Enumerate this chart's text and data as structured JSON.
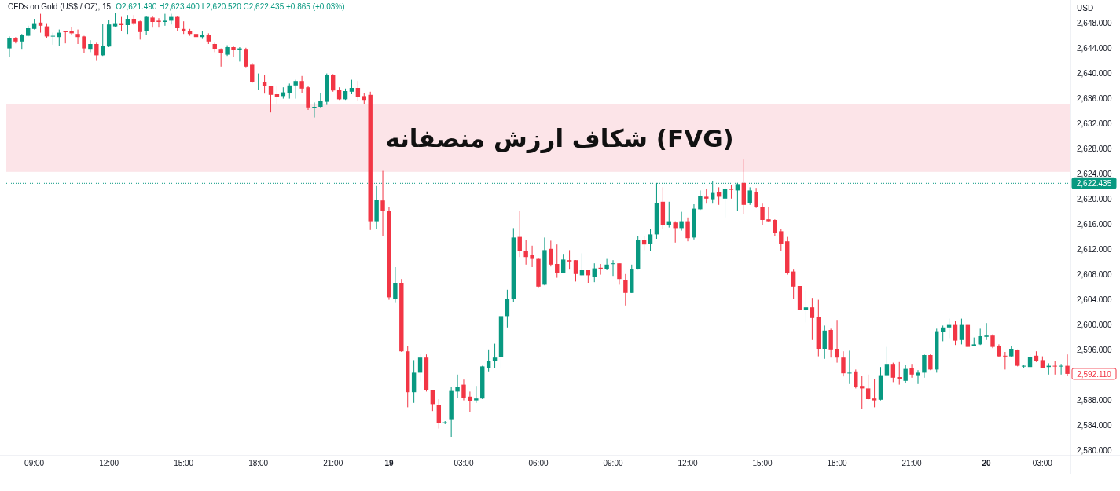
{
  "chart_data": {
    "type": "candlestick",
    "title": "CFDs on Gold (US$ / OZ), 15",
    "subtitle": "O2,621.490 H2,623.400 L2,620.520 C2,622.435 +0.865 (+0.03%)",
    "ylabel": "USD",
    "categories": [
      null,
      null,
      null,
      null,
      "09:00",
      null,
      null,
      null,
      null,
      null,
      null,
      null,
      null,
      null,
      null,
      null,
      "12:00",
      null,
      null,
      null,
      null,
      null,
      null,
      null,
      null,
      null,
      null,
      null,
      "15:00",
      null,
      null,
      null,
      null,
      null,
      null,
      null,
      null,
      null,
      null,
      null,
      "18:00",
      null,
      null,
      null,
      null,
      null,
      null,
      null,
      null,
      null,
      null,
      null,
      "21:00",
      null,
      null,
      null,
      null,
      null,
      null,
      null,
      null,
      "19",
      null,
      null,
      null,
      null,
      null,
      null,
      null,
      null,
      null,
      null,
      null,
      "03:00",
      null,
      null,
      null,
      null,
      null,
      null,
      null,
      null,
      null,
      null,
      null,
      "06:00",
      null,
      null,
      null,
      null,
      null,
      null,
      null,
      null,
      null,
      null,
      null,
      "09:00",
      null,
      null,
      null,
      null,
      null,
      null,
      null,
      null,
      null,
      null,
      null,
      "12:00",
      null,
      null,
      null,
      null,
      null,
      null,
      null,
      null,
      null,
      null,
      null,
      "15:00",
      null,
      null,
      null,
      null,
      null,
      null,
      null,
      null,
      null,
      null,
      null,
      "18:00",
      null,
      null,
      null,
      null,
      null,
      null,
      null,
      null,
      null,
      null,
      null,
      "21:00",
      null,
      null,
      null,
      null,
      null,
      null,
      null,
      null,
      null,
      null,
      null,
      "20",
      null,
      null,
      null,
      null,
      null,
      null,
      null,
      null,
      "03:00",
      null,
      null,
      null,
      null
    ],
    "ohlc": [
      [
        2643.9,
        2645.8,
        2642.6,
        2645.6
      ],
      [
        2645.6,
        2645.7,
        2644.7,
        2645.0
      ],
      [
        2645.0,
        2646.2,
        2643.7,
        2646.1
      ],
      [
        2645.9,
        2647.5,
        2645.8,
        2647.1
      ],
      [
        2647.0,
        2648.6,
        2646.9,
        2647.9
      ],
      [
        2648.0,
        2649.4,
        2646.4,
        2647.5
      ],
      [
        2647.4,
        2647.9,
        2645.5,
        2645.8
      ],
      [
        2645.8,
        2646.4,
        2644.5,
        2645.9
      ],
      [
        2645.7,
        2646.9,
        2644.3,
        2646.4
      ],
      [
        2646.6,
        2646.6,
        2644.7,
        2646.5
      ],
      [
        2646.6,
        2647.3,
        2646.0,
        2646.3
      ],
      [
        2646.2,
        2646.9,
        2644.6,
        2645.7
      ],
      [
        2645.8,
        2645.9,
        2643.2,
        2643.9
      ],
      [
        2643.7,
        2645.2,
        2643.3,
        2644.6
      ],
      [
        2644.6,
        2644.8,
        2641.9,
        2642.8
      ],
      [
        2642.8,
        2647.8,
        2642.7,
        2644.3
      ],
      [
        2644.2,
        2648.4,
        2644.1,
        2647.7
      ],
      [
        2647.4,
        2649.6,
        2647.3,
        2647.9
      ],
      [
        2647.9,
        2648.9,
        2646.6,
        2647.6
      ],
      [
        2647.6,
        2649.2,
        2646.2,
        2648.6
      ],
      [
        2648.6,
        2649.2,
        2647.6,
        2647.9
      ],
      [
        2648.2,
        2648.3,
        2645.3,
        2646.5
      ],
      [
        2646.7,
        2649.0,
        2646.1,
        2648.9
      ],
      [
        2648.8,
        2649.0,
        2647.2,
        2648.1
      ],
      [
        2648.3,
        2648.7,
        2647.2,
        2648.1
      ],
      [
        2648.1,
        2649.4,
        2647.5,
        2648.3
      ],
      [
        2648.3,
        2649.4,
        2647.7,
        2648.9
      ],
      [
        2648.9,
        2649.1,
        2646.6,
        2647.1
      ],
      [
        2647.0,
        2648.2,
        2646.2,
        2646.6
      ],
      [
        2646.6,
        2647.0,
        2645.9,
        2646.2
      ],
      [
        2646.2,
        2646.5,
        2645.3,
        2645.7
      ],
      [
        2645.7,
        2646.6,
        2645.4,
        2646.0
      ],
      [
        2646.0,
        2646.3,
        2644.6,
        2645.0
      ],
      [
        2644.6,
        2644.8,
        2643.3,
        2643.8
      ],
      [
        2643.7,
        2643.9,
        2641.0,
        2643.2
      ],
      [
        2642.9,
        2644.4,
        2642.7,
        2644.1
      ],
      [
        2644.1,
        2644.3,
        2642.5,
        2643.6
      ],
      [
        2643.6,
        2644.1,
        2641.8,
        2643.9
      ],
      [
        2643.7,
        2644.0,
        2640.9,
        2641.0
      ],
      [
        2641.3,
        2641.6,
        2638.4,
        2638.5
      ],
      [
        2638.5,
        2639.9,
        2637.3,
        2638.6
      ],
      [
        2638.6,
        2639.7,
        2636.7,
        2637.9
      ],
      [
        2637.9,
        2637.9,
        2633.7,
        2636.5
      ],
      [
        2636.6,
        2637.9,
        2635.1,
        2636.2
      ],
      [
        2636.3,
        2637.7,
        2635.9,
        2636.9
      ],
      [
        2636.8,
        2638.3,
        2635.9,
        2638.0
      ],
      [
        2638.0,
        2638.9,
        2635.9,
        2638.7
      ],
      [
        2638.7,
        2639.5,
        2636.8,
        2637.5
      ],
      [
        2637.7,
        2637.9,
        2634.1,
        2634.5
      ],
      [
        2634.5,
        2635.3,
        2632.9,
        2634.6
      ],
      [
        2634.6,
        2636.8,
        2634.5,
        2635.5
      ],
      [
        2635.4,
        2639.9,
        2634.9,
        2639.7
      ],
      [
        2639.7,
        2639.8,
        2637.0,
        2637.2
      ],
      [
        2637.3,
        2637.7,
        2635.7,
        2635.8
      ],
      [
        2635.8,
        2637.5,
        2635.7,
        2637.1
      ],
      [
        2637.0,
        2638.9,
        2636.6,
        2637.6
      ],
      [
        2637.6,
        2638.7,
        2635.6,
        2636.2
      ],
      [
        2636.3,
        2636.8,
        2635.0,
        2635.7
      ],
      [
        2636.5,
        2637.0,
        2615.0,
        2616.4
      ],
      [
        2616.4,
        2622.0,
        2615.2,
        2619.8
      ],
      [
        2619.7,
        2624.4,
        2614.1,
        2618.0
      ],
      [
        2618.0,
        2618.6,
        2603.9,
        2604.3
      ],
      [
        2604.1,
        2609.1,
        2603.4,
        2606.6
      ],
      [
        2606.6,
        2607.2,
        2595.6,
        2595.7
      ],
      [
        2595.7,
        2596.6,
        2586.8,
        2589.2
      ],
      [
        2589.2,
        2594.3,
        2587.5,
        2592.3
      ],
      [
        2592.3,
        2595.3,
        2590.9,
        2594.7
      ],
      [
        2594.7,
        2595.2,
        2589.3,
        2589.5
      ],
      [
        2589.6,
        2589.6,
        2586.2,
        2587.3
      ],
      [
        2587.2,
        2588.1,
        2583.4,
        2584.3
      ],
      [
        2584.3,
        2584.6,
        2584.1,
        2584.4
      ],
      [
        2584.9,
        2590.1,
        2582.1,
        2589.4
      ],
      [
        2589.3,
        2592.0,
        2588.3,
        2590.0
      ],
      [
        2590.4,
        2591.2,
        2587.9,
        2588.3
      ],
      [
        2588.5,
        2589.3,
        2586.0,
        2587.8
      ],
      [
        2587.9,
        2590.2,
        2587.5,
        2588.2
      ],
      [
        2588.2,
        2593.4,
        2588.1,
        2593.3
      ],
      [
        2593.0,
        2596.0,
        2592.5,
        2594.2
      ],
      [
        2594.1,
        2596.9,
        2593.1,
        2594.7
      ],
      [
        2594.8,
        2601.6,
        2592.9,
        2601.3
      ],
      [
        2601.3,
        2605.5,
        2599.5,
        2604.0
      ],
      [
        2604.1,
        2615.3,
        2603.5,
        2613.8
      ],
      [
        2613.9,
        2618.0,
        2610.7,
        2611.6
      ],
      [
        2611.7,
        2613.4,
        2609.5,
        2610.7
      ],
      [
        2611.1,
        2612.5,
        2609.1,
        2610.4
      ],
      [
        2610.4,
        2610.6,
        2605.9,
        2606.0
      ],
      [
        2606.3,
        2613.8,
        2606.2,
        2611.8
      ],
      [
        2612.0,
        2613.3,
        2609.2,
        2609.5
      ],
      [
        2609.6,
        2612.7,
        2607.4,
        2608.1
      ],
      [
        2608.2,
        2611.2,
        2608.1,
        2610.3
      ],
      [
        2610.2,
        2611.8,
        2608.7,
        2610.0
      ],
      [
        2610.2,
        2610.2,
        2606.8,
        2608.0
      ],
      [
        2607.8,
        2611.3,
        2607.7,
        2608.6
      ],
      [
        2608.6,
        2608.6,
        2606.6,
        2607.8
      ],
      [
        2607.6,
        2609.7,
        2606.7,
        2608.9
      ],
      [
        2609.0,
        2609.6,
        2607.9,
        2608.8
      ],
      [
        2608.8,
        2610.4,
        2608.6,
        2609.5
      ],
      [
        2609.6,
        2610.2,
        2607.7,
        2609.7
      ],
      [
        2609.7,
        2609.7,
        2606.3,
        2607.2
      ],
      [
        2607.0,
        2608.0,
        2603.0,
        2605.0
      ],
      [
        2605.0,
        2609.5,
        2605.0,
        2608.8
      ],
      [
        2608.8,
        2614.0,
        2608.7,
        2613.4
      ],
      [
        2613.4,
        2614.0,
        2611.8,
        2612.7
      ],
      [
        2612.8,
        2615.2,
        2611.6,
        2614.3
      ],
      [
        2614.3,
        2622.5,
        2613.6,
        2619.3
      ],
      [
        2619.5,
        2621.8,
        2615.2,
        2615.8
      ],
      [
        2615.8,
        2619.5,
        2615.4,
        2616.4
      ],
      [
        2616.2,
        2616.4,
        2613.0,
        2615.3
      ],
      [
        2615.3,
        2617.9,
        2614.9,
        2616.4
      ],
      [
        2616.4,
        2617.0,
        2613.2,
        2613.7
      ],
      [
        2613.8,
        2619.1,
        2613.5,
        2618.4
      ],
      [
        2618.3,
        2621.3,
        2618.2,
        2620.4
      ],
      [
        2620.3,
        2621.5,
        2619.2,
        2620.0
      ],
      [
        2619.9,
        2622.8,
        2619.2,
        2620.9
      ],
      [
        2621.0,
        2621.8,
        2619.0,
        2620.3
      ],
      [
        2620.0,
        2621.8,
        2617.0,
        2621.6
      ],
      [
        2621.6,
        2622.1,
        2620.0,
        2621.4
      ],
      [
        2621.3,
        2622.5,
        2618.1,
        2622.3
      ],
      [
        2622.5,
        2626.2,
        2617.5,
        2619.0
      ],
      [
        2619.3,
        2621.8,
        2619.0,
        2621.3
      ],
      [
        2621.1,
        2621.7,
        2618.5,
        2618.7
      ],
      [
        2618.7,
        2619.2,
        2615.8,
        2616.6
      ],
      [
        2616.7,
        2618.6,
        2616.3,
        2616.4
      ],
      [
        2616.6,
        2616.7,
        2614.1,
        2614.6
      ],
      [
        2614.8,
        2615.2,
        2611.7,
        2612.8
      ],
      [
        2613.2,
        2613.9,
        2607.9,
        2608.1
      ],
      [
        2608.4,
        2608.7,
        2604.1,
        2606.0
      ],
      [
        2606.1,
        2606.1,
        2602.3,
        2602.3
      ],
      [
        2602.3,
        2605.4,
        2600.3,
        2602.7
      ],
      [
        2602.7,
        2604.2,
        2597.5,
        2601.0
      ],
      [
        2601.1,
        2603.9,
        2594.9,
        2596.1
      ],
      [
        2596.1,
        2599.8,
        2594.5,
        2599.0
      ],
      [
        2599.1,
        2599.3,
        2594.7,
        2596.0
      ],
      [
        2596.1,
        2600.7,
        2593.9,
        2594.7
      ],
      [
        2594.7,
        2595.7,
        2591.7,
        2592.2
      ],
      [
        2592.2,
        2595.8,
        2590.5,
        2592.3
      ],
      [
        2592.5,
        2592.8,
        2589.8,
        2590.0
      ],
      [
        2590.2,
        2591.8,
        2586.6,
        2589.8
      ],
      [
        2589.8,
        2592.0,
        2588.0,
        2588.1
      ],
      [
        2588.2,
        2591.3,
        2586.8,
        2587.9
      ],
      [
        2588.0,
        2593.2,
        2587.9,
        2591.9
      ],
      [
        2591.9,
        2596.4,
        2591.7,
        2593.7
      ],
      [
        2593.7,
        2593.9,
        2590.8,
        2591.5
      ],
      [
        2591.6,
        2594.0,
        2590.4,
        2591.3
      ],
      [
        2591.0,
        2593.5,
        2590.7,
        2592.9
      ],
      [
        2593.0,
        2593.7,
        2591.5,
        2592.0
      ],
      [
        2591.9,
        2592.7,
        2590.5,
        2592.3
      ],
      [
        2592.3,
        2595.3,
        2591.5,
        2595.1
      ],
      [
        2595.1,
        2595.3,
        2592.7,
        2592.8
      ],
      [
        2592.8,
        2599.3,
        2592.3,
        2598.9
      ],
      [
        2598.8,
        2599.8,
        2597.3,
        2599.5
      ],
      [
        2599.5,
        2600.9,
        2597.8,
        2599.9
      ],
      [
        2599.9,
        2600.6,
        2596.7,
        2597.4
      ],
      [
        2597.5,
        2600.9,
        2596.8,
        2599.9
      ],
      [
        2599.9,
        2599.9,
        2596.4,
        2596.4
      ],
      [
        2596.6,
        2597.9,
        2596.5,
        2596.8
      ],
      [
        2596.8,
        2599.3,
        2596.7,
        2598.1
      ],
      [
        2598.0,
        2600.2,
        2597.5,
        2598.2
      ],
      [
        2598.2,
        2598.4,
        2596.2,
        2596.4
      ],
      [
        2596.6,
        2596.8,
        2594.8,
        2594.9
      ],
      [
        2595.0,
        2595.6,
        2592.8,
        2594.9
      ],
      [
        2594.9,
        2596.6,
        2594.8,
        2596.1
      ],
      [
        2595.9,
        2596.0,
        2593.3,
        2593.4
      ],
      [
        2593.3,
        2593.6,
        2593.1,
        2593.4
      ],
      [
        2593.2,
        2595.3,
        2593.0,
        2594.8
      ],
      [
        2595.0,
        2595.7,
        2594.0,
        2594.2
      ],
      [
        2594.3,
        2594.9,
        2593.0,
        2593.1
      ],
      [
        2593.2,
        2593.8,
        2592.0,
        2593.4
      ],
      [
        2593.4,
        2594.2,
        2592.0,
        2593.3
      ],
      [
        2593.3,
        2593.7,
        2592.0,
        2593.4
      ],
      [
        2593.4,
        2595.2,
        2591.8,
        2592.11
      ]
    ],
    "ylim": [
      2579.1,
      2651.6
    ],
    "yticks": [
      {
        "value": 2580,
        "label": "2,580.000"
      },
      {
        "value": 2584,
        "label": "2,584.000"
      },
      {
        "value": 2588,
        "label": "2,588.000"
      },
      {
        "value": 2596,
        "label": "2,596.000"
      },
      {
        "value": 2600,
        "label": "2,600.000"
      },
      {
        "value": 2604,
        "label": "2,604.000"
      },
      {
        "value": 2608,
        "label": "2,608.000"
      },
      {
        "value": 2612,
        "label": "2,612.000"
      },
      {
        "value": 2616,
        "label": "2,616.000"
      },
      {
        "value": 2620,
        "label": "2,620.000"
      },
      {
        "value": 2624,
        "label": "2,624.000"
      },
      {
        "value": 2628,
        "label": "2,628.000"
      },
      {
        "value": 2632,
        "label": "2,632.000"
      },
      {
        "value": 2636,
        "label": "2,636.000"
      },
      {
        "value": 2640,
        "label": "2,640.000"
      },
      {
        "value": 2644,
        "label": "2,644.000"
      },
      {
        "value": 2648,
        "label": "2,648.000"
      }
    ],
    "ref_lines": [
      {
        "axis": "y",
        "value": 2622.435,
        "label": "2,622.435",
        "color": "#089981",
        "line_style": "dotted"
      }
    ],
    "annotations": [
      "2,592.110"
    ],
    "bands": [
      {
        "axis": "y",
        "from": 2624.25,
        "to": 2635.0,
        "label": "شکاف ارزش منصفانه (FVG)",
        "color": "#fce4e8"
      }
    ],
    "grid": false
  }
}
